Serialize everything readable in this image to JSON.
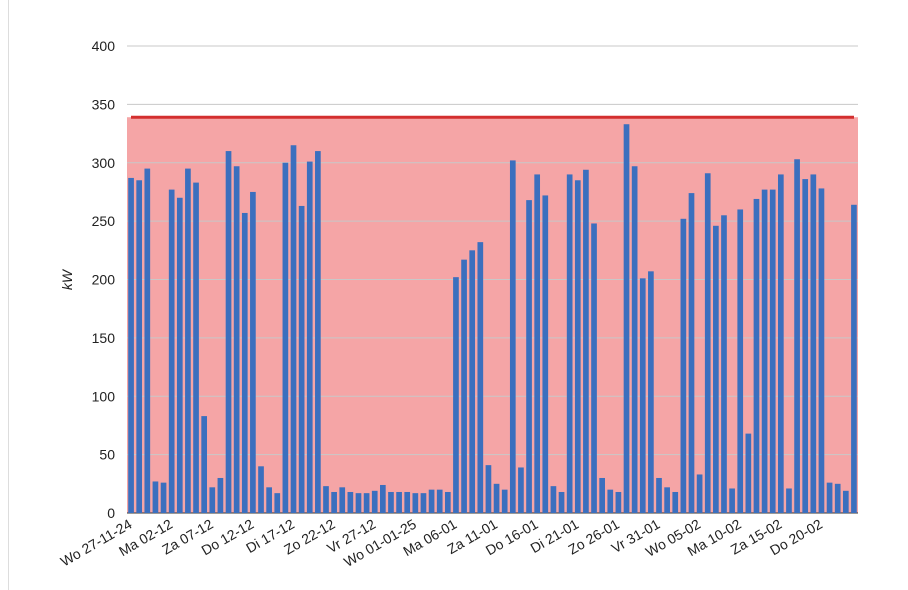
{
  "chart_data": {
    "type": "bar",
    "y_label": "kW",
    "categories": [
      "Wo 27-11-24",
      null,
      null,
      null,
      null,
      "Ma 02-12",
      null,
      null,
      null,
      null,
      "Za 07-12",
      null,
      null,
      null,
      null,
      "Do 12-12",
      null,
      null,
      null,
      null,
      "Di 17-12",
      null,
      null,
      null,
      null,
      "Zo 22-12",
      null,
      null,
      null,
      null,
      "Vr 27-12",
      null,
      null,
      null,
      null,
      "Wo 01-01-25",
      null,
      null,
      null,
      null,
      "Ma 06-01",
      null,
      null,
      null,
      null,
      "Za 11-01",
      null,
      null,
      null,
      null,
      "Do 16-01",
      null,
      null,
      null,
      null,
      "Di 21-01",
      null,
      null,
      null,
      null,
      "Zo 26-01",
      null,
      null,
      null,
      null,
      "Vr 31-01",
      null,
      null,
      null,
      null,
      "Wo 05-02",
      null,
      null,
      null,
      null,
      "Ma 10-02",
      null,
      null,
      null,
      null,
      "Za 15-02",
      null,
      null,
      null,
      null,
      "Do 20-02",
      null,
      null,
      null,
      null
    ],
    "values": [
      287,
      285,
      295,
      27,
      26,
      277,
      270,
      295,
      283,
      83,
      22,
      30,
      310,
      297,
      257,
      275,
      40,
      22,
      17,
      300,
      315,
      263,
      301,
      310,
      23,
      18,
      22,
      18,
      17,
      17,
      19,
      24,
      18,
      18,
      18,
      17,
      17,
      20,
      20,
      18,
      202,
      217,
      225,
      232,
      41,
      25,
      20,
      302,
      39,
      268,
      290,
      272,
      23,
      18,
      290,
      285,
      294,
      248,
      30,
      20,
      18,
      333,
      297,
      201,
      207,
      30,
      22,
      18,
      252,
      274,
      33,
      291,
      246,
      255,
      21,
      260,
      68,
      269,
      277,
      277,
      290,
      21,
      303,
      286,
      290,
      278,
      26,
      25,
      19,
      264
    ],
    "color": "#3b6fbe",
    "threshold": {
      "value": 339,
      "color": "#d32f2f",
      "fill": "#f5a5a6"
    },
    "ylim": [
      0,
      400
    ],
    "yticks": [
      0,
      50,
      100,
      150,
      200,
      250,
      300,
      350,
      400
    ],
    "grid": true
  }
}
